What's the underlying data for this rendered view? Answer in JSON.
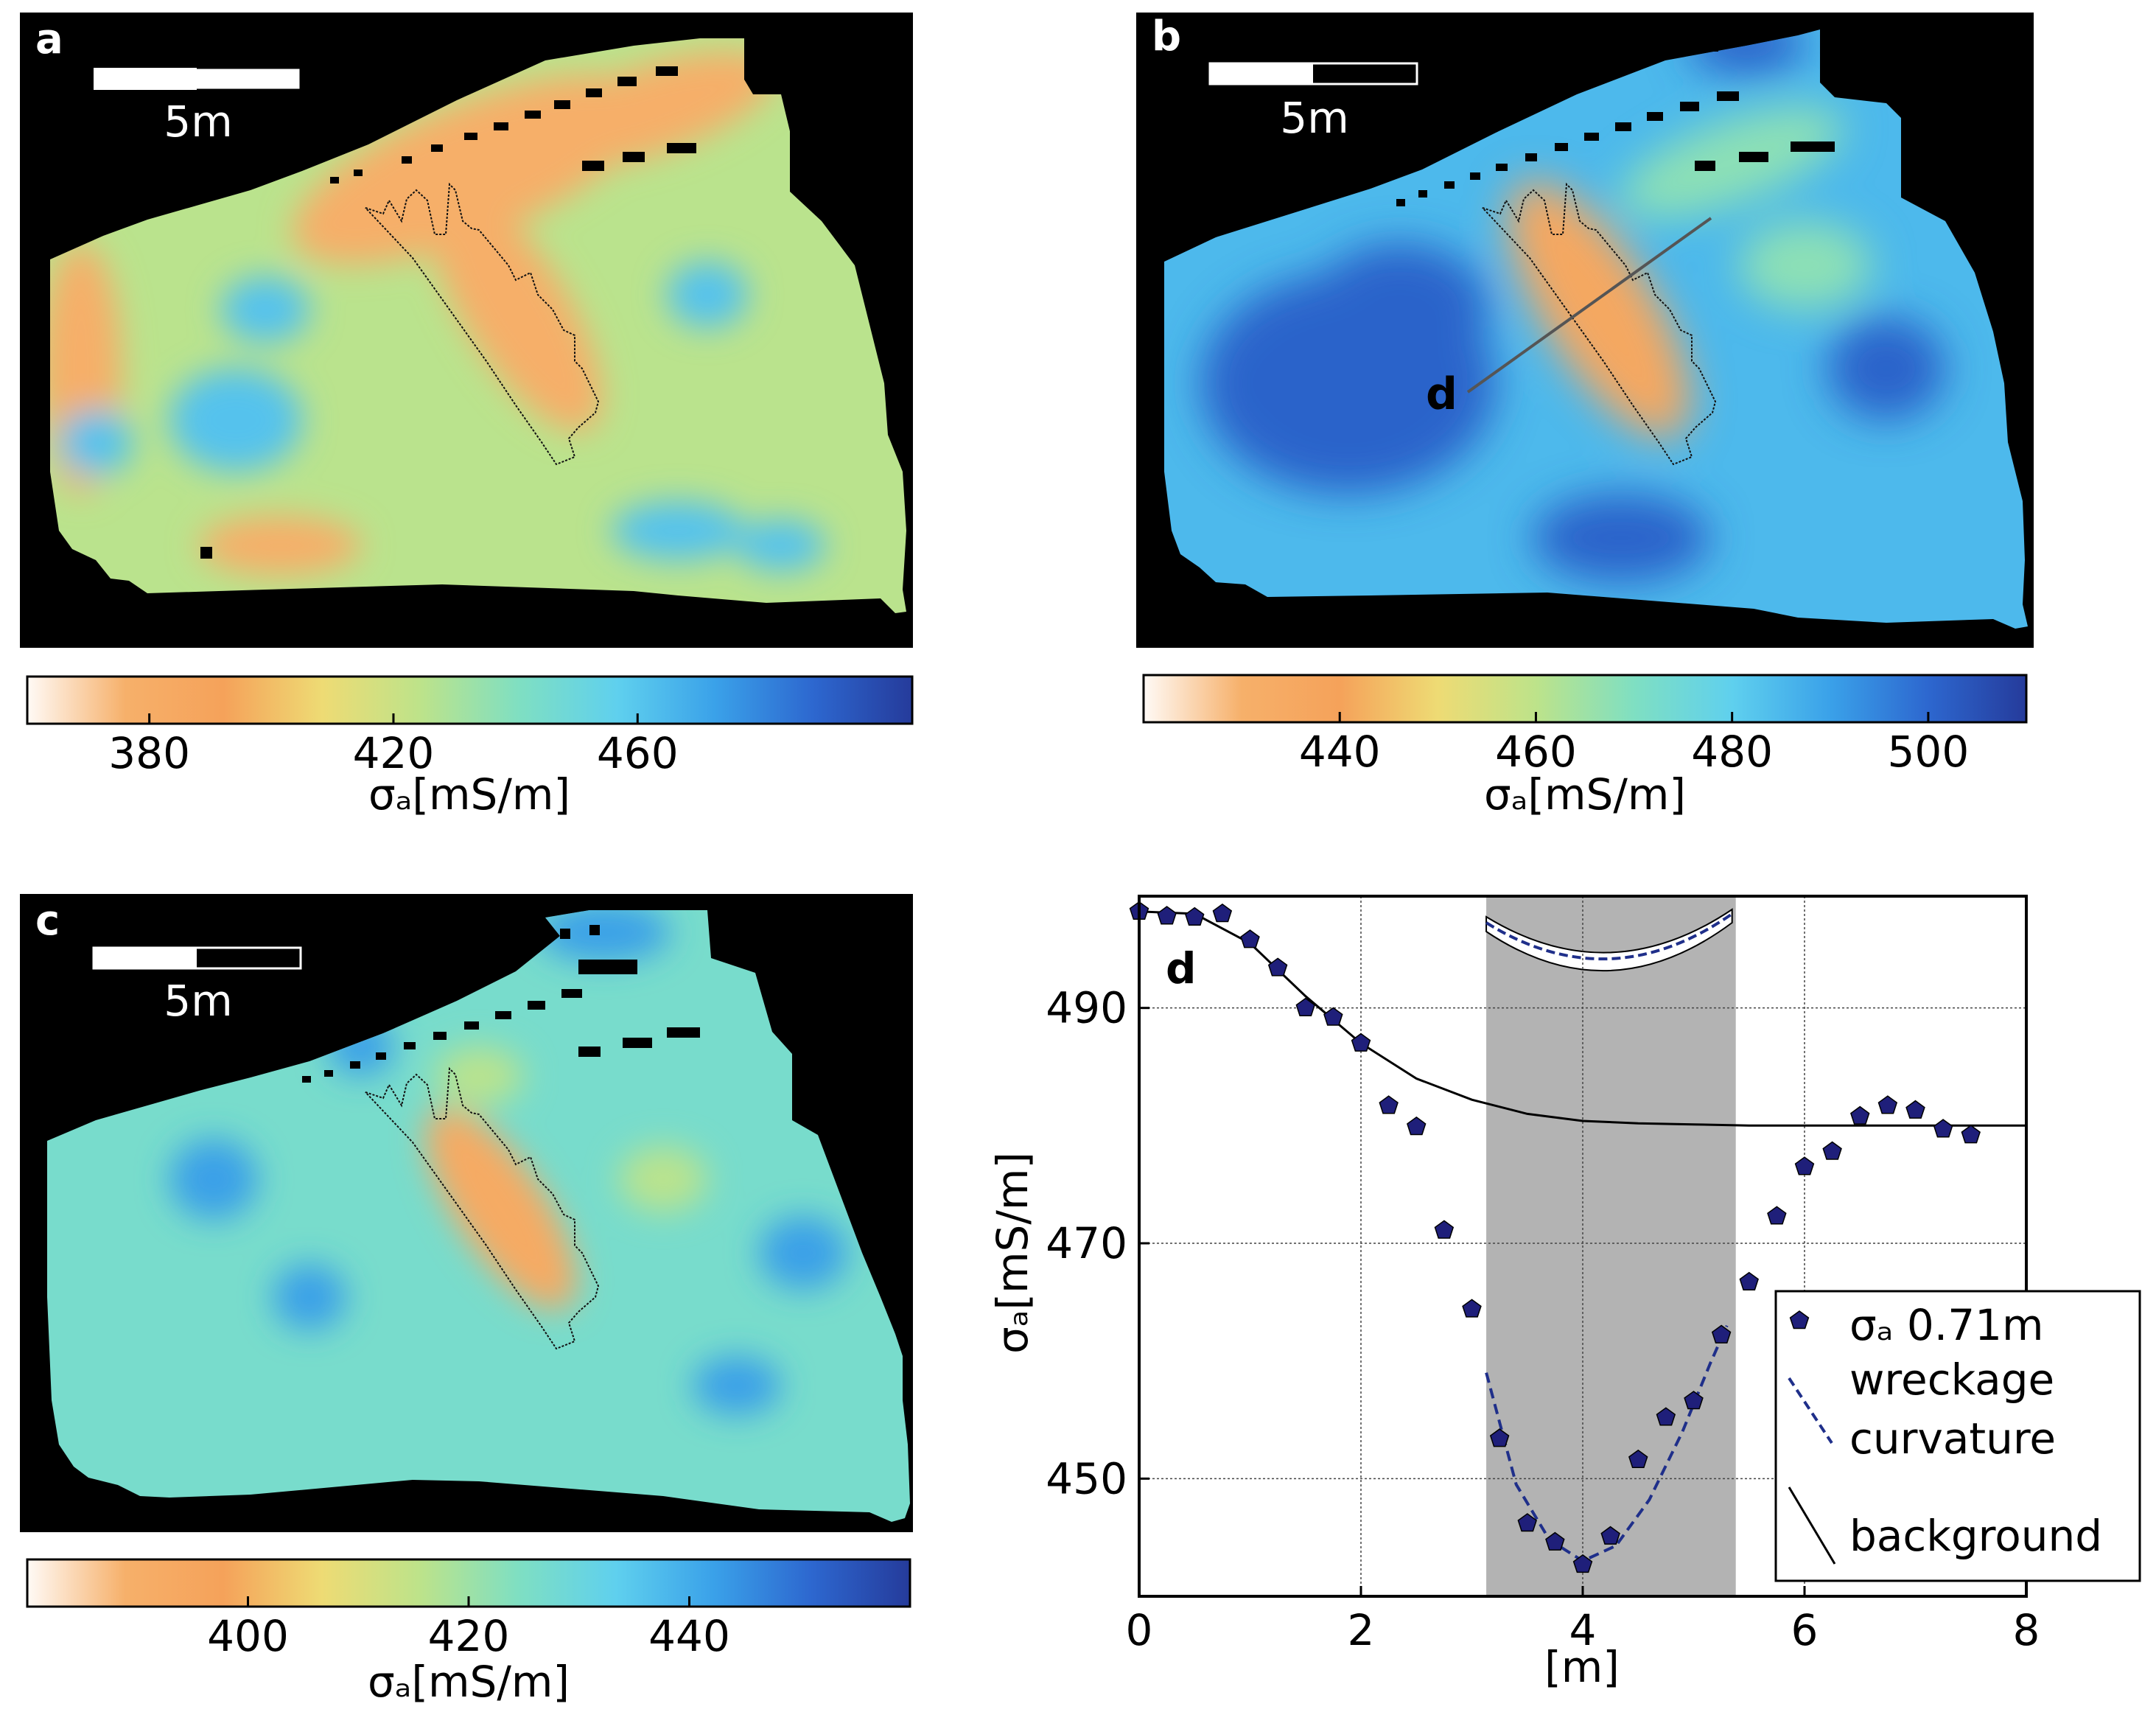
{
  "panels": [
    {
      "letter": "a",
      "scalebar_label": "5m",
      "colorbar": {
        "ticks": [
          "380",
          "420",
          "460"
        ],
        "tick_values": [
          380,
          420,
          460
        ],
        "range": [
          360,
          505
        ],
        "label": "σₐ[mS/m]"
      },
      "background_level": 0.45,
      "hotspot_level": 0.12,
      "lowspot_level": 0.7
    },
    {
      "letter": "b",
      "scalebar_label": "5m",
      "profile_label": "d",
      "colorbar": {
        "ticks": [
          "440",
          "460",
          "480",
          "500"
        ],
        "tick_values": [
          440,
          460,
          480,
          500
        ],
        "range": [
          420,
          510
        ],
        "label": "σₐ[mS/m]"
      },
      "background_level": 0.72,
      "hotspot_level": 0.18,
      "lowspot_level": 0.9
    },
    {
      "letter": "c",
      "scalebar_label": "5m",
      "colorbar": {
        "ticks": [
          "400",
          "420",
          "440"
        ],
        "tick_values": [
          400,
          420,
          440
        ],
        "range": [
          380,
          460
        ],
        "label": "σₐ[mS/m]"
      },
      "background_level": 0.58,
      "hotspot_level": 0.16,
      "lowspot_level": 0.78
    }
  ],
  "colors": {
    "colormap": [
      "#fffaf6",
      "#f6b06a",
      "#f5a25a",
      "#eedb74",
      "#bde38a",
      "#7fdfc2",
      "#5fd0ee",
      "#3aa1e9",
      "#2d67cf",
      "#253b9b"
    ],
    "outside": "#000000",
    "marker": "#1f1f7a",
    "shade": "#b3b3b3"
  },
  "chart_data": {
    "type": "scatter",
    "panel_label": "d",
    "xlabel": "[m]",
    "ylabel": "σₐ[mS/m]",
    "xlim": [
      0,
      8
    ],
    "ylim": [
      440,
      499.5
    ],
    "x_ticks": [
      0,
      2,
      4,
      6,
      8
    ],
    "y_ticks": [
      450,
      470,
      490
    ],
    "grid": true,
    "shaded_region": [
      3.13,
      5.38
    ],
    "series": [
      {
        "name": "σₐ 0.71m",
        "kind": "markers",
        "x": [
          0,
          0.25,
          0.5,
          0.75,
          1.0,
          1.25,
          1.5,
          1.75,
          2.0,
          2.25,
          2.5,
          2.75,
          3.0,
          3.25,
          3.5,
          3.75,
          4.0,
          4.25,
          4.5,
          4.75,
          5.0,
          5.25,
          5.5,
          5.75,
          6.0,
          6.25,
          6.5,
          6.75,
          7.0,
          7.25,
          7.5
        ],
        "y": [
          498.2,
          497.8,
          497.7,
          498.0,
          495.8,
          493.4,
          490.0,
          489.2,
          487.0,
          481.7,
          479.9,
          471.1,
          464.4,
          453.4,
          446.2,
          444.6,
          442.7,
          445.1,
          451.6,
          455.2,
          456.6,
          462.2,
          466.7,
          472.3,
          476.5,
          477.8,
          480.8,
          481.7,
          481.3,
          479.7,
          479.2
        ]
      },
      {
        "name": "wreckage curvature",
        "kind": "dashed-line",
        "x": [
          3.13,
          3.4,
          3.7,
          4.0,
          4.3,
          4.6,
          4.9,
          5.15,
          5.3
        ],
        "y": [
          459.0,
          449.5,
          444.8,
          443.0,
          444.3,
          448.2,
          454.0,
          459.8,
          463.0
        ]
      },
      {
        "name": "background",
        "kind": "line",
        "x": [
          0,
          0.5,
          1.0,
          1.5,
          2.0,
          2.5,
          3.0,
          3.5,
          4.0,
          4.5,
          5.0,
          5.5,
          6.0,
          6.5,
          7.0,
          7.5,
          8.0
        ],
        "y": [
          498.2,
          498.0,
          495.5,
          491.0,
          487.0,
          484.0,
          482.2,
          481.0,
          480.4,
          480.2,
          480.1,
          480.0,
          480.0,
          480.0,
          480.0,
          480.0,
          480.0
        ]
      }
    ]
  }
}
